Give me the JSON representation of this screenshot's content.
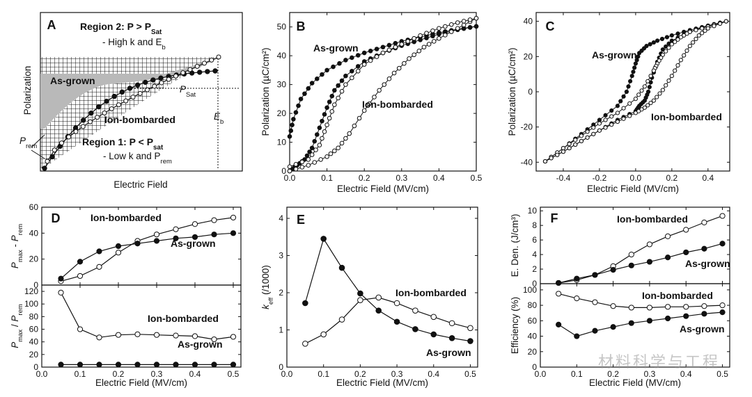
{
  "watermark": "材料科学与工程",
  "colors": {
    "filled": "#111111",
    "open": "#ffffff",
    "shade": "#b9b9b9",
    "stroke": "#111111"
  },
  "chart_data": [
    {
      "panel": "A",
      "type": "diagram",
      "xlabel": "Electric Field",
      "ylabel": "Polarization",
      "region2": {
        "title": "Region 2: P > P",
        "title_sub": "Sat",
        "desc": "- High k and E",
        "desc_sub": "b"
      },
      "region1": {
        "title": "Region 1: P < P",
        "title_sub": "sat",
        "desc": "- Low k and P",
        "desc_sub": "rem"
      },
      "labels": {
        "as_grown": "As-grown",
        "ion_bombarded": "Ion-bombarded",
        "psat": "P",
        "psat_sub": "Sat",
        "prem": "P",
        "prem_sub": "rem",
        "eb": "E",
        "eb_sub": "b"
      }
    },
    {
      "panel": "B",
      "type": "line",
      "xlabel": "Electric Field (MV/cm)",
      "ylabel": "Polarization (µC/cm²)",
      "xlim": [
        0,
        0.5
      ],
      "ylim": [
        0,
        55
      ],
      "xticks": [
        "0.0",
        "0.1",
        "0.2",
        "0.3",
        "0.4",
        "0.5"
      ],
      "yticks": [
        "0",
        "10",
        "20",
        "30",
        "40",
        "50"
      ],
      "series": [
        {
          "name": "As-grown",
          "marker": "filled",
          "up": [
            [
              0,
              0
            ],
            [
              0.02,
              2
            ],
            [
              0.04,
              4
            ],
            [
              0.06,
              8
            ],
            [
              0.08,
              15
            ],
            [
              0.1,
              22
            ],
            [
              0.12,
              28
            ],
            [
              0.15,
              33
            ],
            [
              0.2,
              38
            ],
            [
              0.25,
              41
            ],
            [
              0.3,
              43.5
            ],
            [
              0.35,
              45.5
            ],
            [
              0.4,
              47.5
            ],
            [
              0.45,
              49
            ],
            [
              0.5,
              50.2
            ]
          ],
          "down": [
            [
              0.5,
              50.2
            ],
            [
              0.45,
              49.2
            ],
            [
              0.4,
              48
            ],
            [
              0.35,
              46.5
            ],
            [
              0.3,
              45
            ],
            [
              0.25,
              43
            ],
            [
              0.2,
              41
            ],
            [
              0.15,
              38.5
            ],
            [
              0.1,
              35
            ],
            [
              0.06,
              30.5
            ],
            [
              0.03,
              25
            ],
            [
              0.01,
              18
            ],
            [
              0,
              12
            ]
          ]
        },
        {
          "name": "Ion-bombarded",
          "marker": "open",
          "up": [
            [
              0,
              0
            ],
            [
              0.05,
              2
            ],
            [
              0.1,
              5
            ],
            [
              0.13,
              8
            ],
            [
              0.16,
              13
            ],
            [
              0.2,
              21
            ],
            [
              0.24,
              28
            ],
            [
              0.28,
              34
            ],
            [
              0.32,
              39
            ],
            [
              0.36,
              43
            ],
            [
              0.4,
              46
            ],
            [
              0.45,
              49.5
            ],
            [
              0.5,
              53
            ]
          ],
          "down": [
            [
              0.5,
              53
            ],
            [
              0.45,
              51.5
            ],
            [
              0.4,
              49.5
            ],
            [
              0.35,
              47
            ],
            [
              0.3,
              44
            ],
            [
              0.25,
              41
            ],
            [
              0.2,
              37
            ],
            [
              0.15,
              30
            ],
            [
              0.12,
              23
            ],
            [
              0.1,
              16
            ],
            [
              0.08,
              9
            ],
            [
              0.05,
              4
            ],
            [
              0,
              1.5
            ]
          ]
        }
      ]
    },
    {
      "panel": "C",
      "type": "line",
      "xlabel": "Electric Field (MV/cm)",
      "ylabel": "Polarization (µC/cm²)",
      "xlim": [
        -0.55,
        0.52
      ],
      "ylim": [
        -45,
        45
      ],
      "xticks": [
        "-0.4",
        "-0.2",
        "0.0",
        "0.2",
        "0.4"
      ],
      "yticks": [
        "-40",
        "-20",
        "0",
        "20",
        "40"
      ],
      "series": [
        {
          "name": "As-grown",
          "marker": "filled",
          "upper": [
            [
              0.5,
              40
            ],
            [
              0.4,
              37.5
            ],
            [
              0.3,
              35
            ],
            [
              0.2,
              32
            ],
            [
              0.12,
              29
            ],
            [
              0.06,
              26
            ],
            [
              0.02,
              22
            ],
            [
              0,
              16
            ],
            [
              -0.02,
              9
            ],
            [
              -0.05,
              0
            ],
            [
              -0.1,
              -8
            ],
            [
              -0.2,
              -16
            ],
            [
              -0.3,
              -24
            ],
            [
              -0.4,
              -32
            ],
            [
              -0.5,
              -39.5
            ]
          ],
          "lower": [
            [
              -0.5,
              -39.5
            ],
            [
              -0.4,
              -34
            ],
            [
              -0.3,
              -28
            ],
            [
              -0.2,
              -22
            ],
            [
              -0.1,
              -16
            ],
            [
              0,
              -11
            ],
            [
              0.02,
              -8
            ],
            [
              0.05,
              -5
            ],
            [
              0.07,
              0
            ],
            [
              0.09,
              8
            ],
            [
              0.12,
              17
            ],
            [
              0.15,
              24
            ],
            [
              0.2,
              29
            ],
            [
              0.3,
              34
            ],
            [
              0.4,
              37.5
            ],
            [
              0.5,
              40
            ]
          ]
        },
        {
          "name": "Ion-bombarded",
          "marker": "open",
          "upper": [
            [
              0.5,
              40
            ],
            [
              0.4,
              37
            ],
            [
              0.3,
              34
            ],
            [
              0.25,
              31
            ],
            [
              0.2,
              27
            ],
            [
              0.15,
              21
            ],
            [
              0.12,
              16
            ],
            [
              0.1,
              12
            ],
            [
              0.05,
              3
            ],
            [
              0,
              -4
            ],
            [
              -0.1,
              -12
            ],
            [
              -0.2,
              -18
            ],
            [
              -0.3,
              -25
            ],
            [
              -0.4,
              -32
            ],
            [
              -0.5,
              -39.5
            ]
          ],
          "lower": [
            [
              -0.5,
              -39.5
            ],
            [
              -0.4,
              -34
            ],
            [
              -0.3,
              -28
            ],
            [
              -0.2,
              -22
            ],
            [
              -0.1,
              -17
            ],
            [
              0,
              -12
            ],
            [
              0.05,
              -9
            ],
            [
              0.1,
              -5
            ],
            [
              0.15,
              1
            ],
            [
              0.2,
              9
            ],
            [
              0.25,
              18
            ],
            [
              0.3,
              26
            ],
            [
              0.35,
              32
            ],
            [
              0.4,
              36
            ],
            [
              0.5,
              40
            ]
          ]
        }
      ]
    },
    {
      "panel": "D",
      "type": "line",
      "xlabel": "Electric Field (MV/cm)",
      "xticks": [
        "0.0",
        "0.1",
        "0.2",
        "0.3",
        "0.4",
        "0.5"
      ],
      "top": {
        "ylabel": "P_max - P_rem",
        "ylim": [
          0,
          60
        ],
        "yticks": [
          "0",
          "20",
          "40",
          "60"
        ],
        "x": [
          0.05,
          0.1,
          0.15,
          0.2,
          0.25,
          0.3,
          0.35,
          0.4,
          0.45,
          0.5
        ],
        "series": [
          {
            "name": "Ion-bombarded",
            "marker": "open",
            "values": [
              3,
              7,
              14,
              25,
              34,
              39,
              43,
              47,
              50,
              52
            ]
          },
          {
            "name": "As-grown",
            "marker": "filled",
            "values": [
              5,
              18,
              26,
              30,
              32,
              34,
              36,
              37,
              39,
              40
            ]
          }
        ]
      },
      "bottom": {
        "ylabel": "P_max / P_rem",
        "ylim": [
          0,
          130
        ],
        "yticks": [
          "0",
          "20",
          "40",
          "60",
          "80",
          "100",
          "120"
        ],
        "x": [
          0.05,
          0.1,
          0.15,
          0.2,
          0.25,
          0.3,
          0.35,
          0.4,
          0.45,
          0.5
        ],
        "series": [
          {
            "name": "Ion-bombarded",
            "marker": "open",
            "values": [
              118,
              60,
              47,
              51,
              52,
              51,
              50,
              49,
              44,
              48
            ]
          },
          {
            "name": "As-grown",
            "marker": "filled",
            "values": [
              4,
              4,
              4,
              4,
              4,
              4,
              4,
              4,
              4,
              4
            ]
          }
        ]
      }
    },
    {
      "panel": "E",
      "type": "line",
      "xlabel": "Electric Field (MV/cm)",
      "ylabel": "k_eff (/1000)",
      "xlim": [
        0,
        0.5
      ],
      "ylim": [
        0,
        4.3
      ],
      "xticks": [
        "0.0",
        "0.1",
        "0.2",
        "0.3",
        "0.4",
        "0.5"
      ],
      "yticks": [
        "0",
        "1",
        "2",
        "3",
        "4"
      ],
      "x": [
        0.05,
        0.1,
        0.15,
        0.2,
        0.25,
        0.3,
        0.35,
        0.4,
        0.45,
        0.5
      ],
      "series": [
        {
          "name": "As-grown",
          "marker": "filled",
          "values": [
            1.72,
            3.45,
            2.67,
            1.98,
            1.52,
            1.22,
            1.02,
            0.88,
            0.78,
            0.7
          ]
        },
        {
          "name": "Ion-bombarded",
          "marker": "open",
          "values": [
            0.63,
            0.88,
            1.28,
            1.8,
            1.87,
            1.72,
            1.52,
            1.35,
            1.18,
            1.05
          ]
        }
      ]
    },
    {
      "panel": "F",
      "type": "line",
      "xlabel": "Electric Field (MV/cm)",
      "xticks": [
        "0.0",
        "0.1",
        "0.2",
        "0.3",
        "0.4",
        "0.5"
      ],
      "top": {
        "ylabel": "E. Den. (J/cm³)",
        "ylim": [
          0,
          10.5
        ],
        "yticks": [
          "0",
          "2",
          "4",
          "6",
          "8",
          "10"
        ],
        "x": [
          0.05,
          0.1,
          0.15,
          0.2,
          0.25,
          0.3,
          0.35,
          0.4,
          0.45,
          0.5
        ],
        "series": [
          {
            "name": "Ion-bombarded",
            "marker": "open",
            "values": [
              0.1,
              0.5,
              1.2,
              2.4,
              4.0,
              5.4,
              6.5,
              7.4,
              8.4,
              9.3
            ]
          },
          {
            "name": "As-grown",
            "marker": "filled",
            "values": [
              0.1,
              0.7,
              1.2,
              1.9,
              2.5,
              3.0,
              3.6,
              4.3,
              4.8,
              5.5
            ]
          }
        ]
      },
      "bottom": {
        "ylabel": "Efficiency (%)",
        "ylim": [
          0,
          108
        ],
        "yticks": [
          "0",
          "20",
          "40",
          "60",
          "80",
          "100"
        ],
        "x": [
          0.05,
          0.1,
          0.15,
          0.2,
          0.25,
          0.3,
          0.35,
          0.4,
          0.45,
          0.5
        ],
        "series": [
          {
            "name": "Ion-bombarded",
            "marker": "open",
            "values": [
              95,
              89,
              84,
              79,
              77,
              77,
              78,
              78,
              79,
              80
            ]
          },
          {
            "name": "As-grown",
            "marker": "filled",
            "values": [
              55,
              40,
              47,
              52,
              57,
              60,
              63,
              66,
              69,
              71
            ]
          }
        ]
      }
    }
  ]
}
